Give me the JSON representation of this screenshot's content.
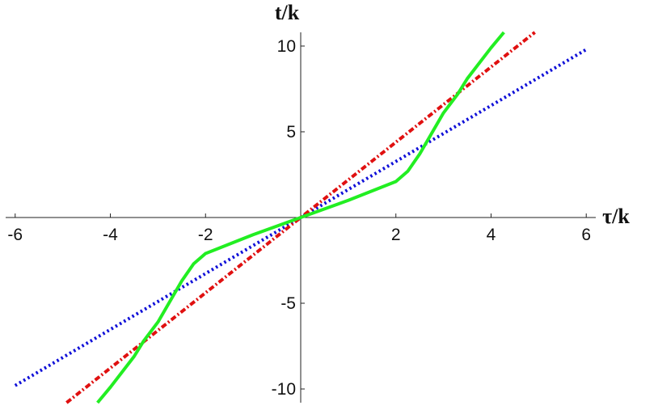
{
  "chart_data": {
    "type": "line",
    "xlabel": "τ/k",
    "ylabel": "t/k",
    "xlim": [
      -6.2,
      6.2
    ],
    "ylim": [
      -10.8,
      10.8
    ],
    "xticks": [
      -6,
      -4,
      -2,
      2,
      4,
      6
    ],
    "yticks": [
      -10,
      -5,
      5,
      10
    ],
    "series": [
      {
        "color": "#1010d8",
        "style": "dotted",
        "x": [
          -6,
          -4,
          -2,
          0,
          2,
          4,
          6
        ],
        "values": [
          -9.8,
          -6.53,
          -3.27,
          0,
          3.27,
          6.53,
          9.8
        ]
      },
      {
        "color": "#e01010",
        "style": "dashdot",
        "x": [
          -4.92,
          -2.5,
          0,
          2.5,
          4.92
        ],
        "values": [
          -10.8,
          -5.49,
          0,
          5.49,
          10.8
        ]
      },
      {
        "color": "#22ee22",
        "style": "solid",
        "x": [
          -4.27,
          -4,
          -3.5,
          -3.3,
          -3,
          -2.5,
          -2.25,
          -2,
          -1.5,
          -1,
          -0.5,
          0,
          0.5,
          1,
          1.5,
          2,
          2.25,
          2.5,
          3,
          3.3,
          3.5,
          4,
          4.27
        ],
        "values": [
          -10.8,
          -9.9,
          -8.1,
          -7.2,
          -6.1,
          -3.7,
          -2.7,
          -2.1,
          -1.55,
          -1.0,
          -0.5,
          0,
          0.5,
          1.0,
          1.55,
          2.1,
          2.7,
          3.7,
          6.1,
          7.2,
          8.1,
          9.9,
          10.8
        ]
      }
    ]
  }
}
